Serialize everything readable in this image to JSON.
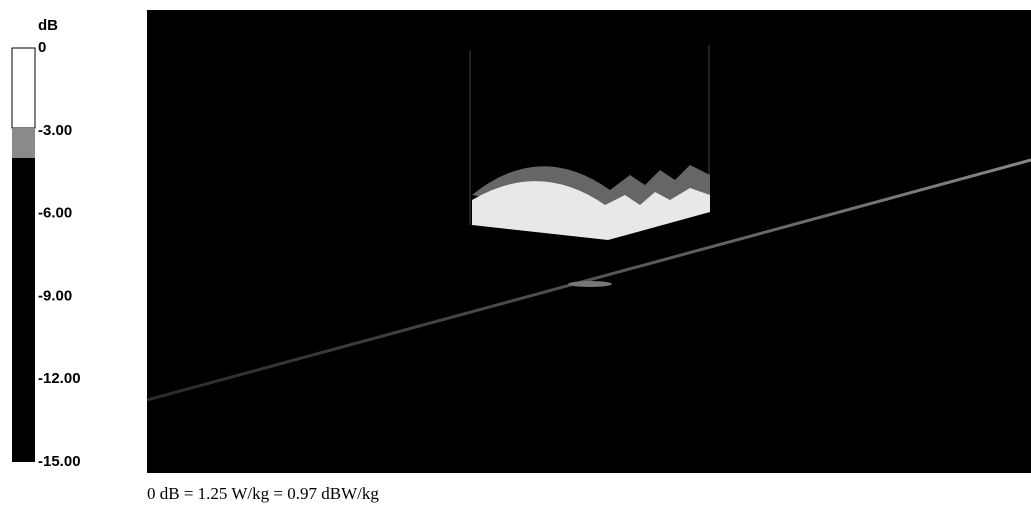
{
  "colorbar": {
    "unit": "dB",
    "ticks": [
      "0",
      "-3.00",
      "-6.00",
      "-9.00",
      "-12.00",
      "-15.00"
    ]
  },
  "caption": "0 dB = 1.25 W/kg = 0.97 dBW/kg"
}
